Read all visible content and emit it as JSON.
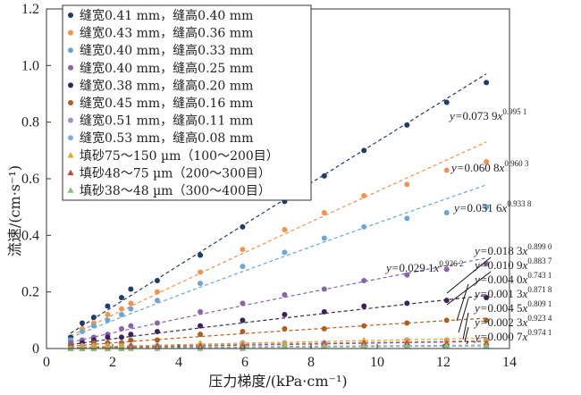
{
  "chart_data": {
    "type": "scatter",
    "xlabel": "压力梯度/(kPa·cm⁻¹)",
    "ylabel": "流速/(cm·s⁻¹)",
    "xlim": [
      0,
      14
    ],
    "ylim": [
      0,
      1.2
    ],
    "xticks": [
      "0",
      "2",
      "4",
      "6",
      "8",
      "10",
      "12",
      "14"
    ],
    "yticks": [
      "0",
      "0.2",
      "0.4",
      "0.6",
      "0.8",
      "1.0",
      "1.2"
    ],
    "x": [
      0.73,
      1.08,
      1.43,
      1.85,
      2.27,
      2.55,
      3.35,
      4.65,
      5.93,
      7.2,
      8.4,
      9.6,
      10.9,
      12.1,
      13.3
    ],
    "legend_position": "top-left",
    "series": [
      {
        "name": "缝宽0.41 mm，缝高0.40 mm",
        "color": "#1f3b66",
        "marker": "circle",
        "a": 0.0739,
        "b": 0.9951,
        "values": [
          0.04,
          0.09,
          0.11,
          0.15,
          0.18,
          0.21,
          0.24,
          0.33,
          0.43,
          0.52,
          0.61,
          0.7,
          0.79,
          0.87,
          0.94
        ]
      },
      {
        "name": "缝宽0.43 mm，缝高0.36 mm",
        "color": "#f0934e",
        "marker": "circle",
        "a": 0.0608,
        "b": 0.9603,
        "values": [
          0.03,
          0.07,
          0.09,
          0.12,
          0.14,
          0.16,
          0.2,
          0.27,
          0.35,
          0.42,
          0.48,
          0.54,
          0.58,
          0.63,
          0.66
        ]
      },
      {
        "name": "缝宽0.40 mm，缝高0.33 mm",
        "color": "#6aa6d6",
        "marker": "circle",
        "a": 0.0516,
        "b": 0.9338,
        "values": [
          0.03,
          0.06,
          0.08,
          0.1,
          0.12,
          0.14,
          0.17,
          0.23,
          0.29,
          0.34,
          0.39,
          0.43,
          0.46,
          0.48,
          0.5
        ]
      },
      {
        "name": "缝宽0.40 mm，缝高0.25 mm",
        "color": "#8a63a8",
        "marker": "circle",
        "a": 0.0291,
        "b": 0.9262,
        "values": [
          0.02,
          0.03,
          0.04,
          0.05,
          0.07,
          0.08,
          0.09,
          0.13,
          0.16,
          0.19,
          0.21,
          0.24,
          0.26,
          0.28,
          0.3
        ]
      },
      {
        "name": "缝宽0.38 mm，缝高0.20 mm",
        "color": "#3c2357",
        "marker": "circle",
        "a": 0.0183,
        "b": 0.899,
        "values": [
          0.01,
          0.02,
          0.03,
          0.04,
          0.04,
          0.05,
          0.06,
          0.08,
          0.1,
          0.12,
          0.13,
          0.15,
          0.16,
          0.17,
          0.18
        ]
      },
      {
        "name": "缝宽0.45 mm，缝高0.16 mm",
        "color": "#b0601e",
        "marker": "circle",
        "a": 0.0109,
        "b": 0.8837,
        "values": [
          0.01,
          0.01,
          0.02,
          0.02,
          0.02,
          0.03,
          0.03,
          0.05,
          0.06,
          0.07,
          0.07,
          0.08,
          0.09,
          0.1,
          0.1
        ]
      },
      {
        "name": "缝宽0.51 mm，缝高0.11 mm",
        "color": "#a88fc7",
        "marker": "circle",
        "a": 0.004,
        "b": 0.7431,
        "values": [
          0.0,
          0.01,
          0.01,
          0.01,
          0.01,
          0.01,
          0.01,
          0.01,
          0.02,
          0.02,
          0.02,
          0.02,
          0.03,
          0.03,
          0.03
        ]
      },
      {
        "name": "缝宽0.53 mm，缝高0.08 mm",
        "color": "#7fb0de",
        "marker": "circle",
        "a": 0.0013,
        "b": 0.8718,
        "values": [
          0.0,
          0.0,
          0.0,
          0.0,
          0.0,
          0.0,
          0.01,
          0.01,
          0.01,
          0.01,
          0.01,
          0.01,
          0.01,
          0.01,
          0.01
        ]
      },
      {
        "name": "填砂75～150 µm（100～200目）",
        "color": "#e8a52c",
        "marker": "triangle",
        "a": 0.0045,
        "b": 0.8091,
        "values": [
          0.0,
          0.01,
          0.01,
          0.01,
          0.01,
          0.01,
          0.01,
          0.02,
          0.02,
          0.02,
          0.02,
          0.03,
          0.03,
          0.03,
          0.03
        ]
      },
      {
        "name": "填砂48～75 µm（200～300目）",
        "color": "#b94a4a",
        "marker": "triangle",
        "a": 0.0023,
        "b": 0.9234,
        "values": [
          0.0,
          0.0,
          0.0,
          0.0,
          0.0,
          0.01,
          0.01,
          0.01,
          0.01,
          0.01,
          0.02,
          0.02,
          0.02,
          0.02,
          0.02
        ]
      },
      {
        "name": "填砂38～48 µm（300～400目）",
        "color": "#8bbf7a",
        "marker": "triangle",
        "a": 0.0007,
        "b": 0.9741,
        "values": [
          0.0,
          0.0,
          0.0,
          0.0,
          0.0,
          0.0,
          0.0,
          0.0,
          0.0,
          0.01,
          0.01,
          0.01,
          0.01,
          0.01,
          0.01
        ]
      }
    ],
    "annotations": [
      {
        "prefix": "y=",
        "coef": "0.073 9",
        "var": "x",
        "exp": "0.995 1"
      },
      {
        "prefix": "y=",
        "coef": "0.060 8",
        "var": "x",
        "exp": "0.960 3"
      },
      {
        "prefix": "y=",
        "coef": "0.051 6",
        "var": "x",
        "exp": "0.933 8"
      },
      {
        "prefix": "y=",
        "coef": "0.029 1",
        "var": "x",
        "exp": "0.926 2"
      },
      {
        "prefix": "y=",
        "coef": "0.018 3",
        "var": "x",
        "exp": "0.899 0"
      },
      {
        "prefix": "y=",
        "coef": "0.010 9",
        "var": "x",
        "exp": "0.883 7"
      },
      {
        "prefix": "y=",
        "coef": "0.004 0",
        "var": "x",
        "exp": "0.743 1"
      },
      {
        "prefix": "y=",
        "coef": "0.001 3",
        "var": "x",
        "exp": "0.871 8"
      },
      {
        "prefix": "y=",
        "coef": "0.004 5",
        "var": "x",
        "exp": "0.809 1"
      },
      {
        "prefix": "y=",
        "coef": "0.002 3",
        "var": "x",
        "exp": "0.923 4"
      },
      {
        "prefix": "y=",
        "coef": "0.000 7",
        "var": "x",
        "exp": "0.974 1"
      }
    ]
  }
}
